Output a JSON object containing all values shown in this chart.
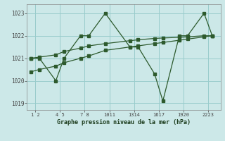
{
  "bg_color": "#cce8e8",
  "grid_color": "#99cccc",
  "line_color": "#2d5a2d",
  "title": "Graphe pression niveau de la mer (hPa)",
  "ylabel_values": [
    1019,
    1020,
    1021,
    1022,
    1023
  ],
  "series1_x": [
    1,
    2,
    4,
    5,
    7,
    8,
    10,
    13,
    14,
    16,
    17,
    19,
    20,
    22,
    23
  ],
  "series1_y": [
    1021.0,
    1021.0,
    1020.0,
    1021.0,
    1022.0,
    1022.0,
    1023.0,
    1021.5,
    1021.5,
    1020.3,
    1019.1,
    1022.0,
    1022.0,
    1023.0,
    1022.0
  ],
  "series2_x": [
    1,
    2,
    4,
    5,
    7,
    8,
    10,
    13,
    14,
    16,
    17,
    19,
    20,
    22,
    23
  ],
  "series2_y": [
    1021.0,
    1021.05,
    1021.15,
    1021.3,
    1021.45,
    1021.55,
    1021.65,
    1021.78,
    1021.82,
    1021.88,
    1021.9,
    1021.93,
    1021.95,
    1022.0,
    1022.0
  ],
  "series3_x": [
    1,
    2,
    4,
    5,
    7,
    8,
    10,
    13,
    14,
    16,
    17,
    19,
    20,
    22,
    23
  ],
  "series3_y": [
    1020.4,
    1020.5,
    1020.65,
    1020.8,
    1021.0,
    1021.1,
    1021.35,
    1021.5,
    1021.55,
    1021.65,
    1021.7,
    1021.8,
    1021.85,
    1021.95,
    1022.0
  ],
  "ylim": [
    1018.7,
    1023.4
  ],
  "xlim": [
    0.5,
    24.0
  ],
  "x_tick_positions": [
    1.5,
    4.5,
    7.5,
    10.5,
    13.5,
    16.5,
    19.5,
    22.5
  ],
  "x_tick_labels": [
    "1 2",
    "4 5",
    "7 8",
    "1011",
    "1314",
    "1617",
    "1920",
    "2223"
  ]
}
